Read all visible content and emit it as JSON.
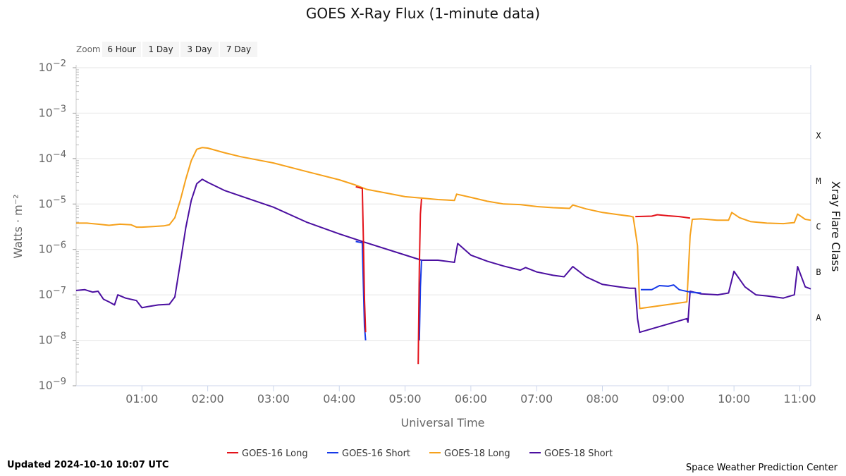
{
  "title": "GOES X-Ray Flux (1-minute data)",
  "zoom": {
    "label": "Zoom",
    "buttons": [
      "6 Hour",
      "1 Day",
      "3 Day",
      "7 Day"
    ]
  },
  "updated": "Updated 2024-10-10 10:07 UTC",
  "credit": "Space Weather Prediction Center",
  "colors": {
    "goes16_long": "#e3121a",
    "goes16_short": "#1639e8",
    "goes18_long": "#f6a11b",
    "goes18_short": "#4b0fa0"
  },
  "chart_data": {
    "type": "line",
    "title": "GOES X-Ray Flux (1-minute data)",
    "xlabel": "Universal Time",
    "ylabel": "Watts · m⁻²",
    "y2label": "Xray Flare Class",
    "yscale": "log",
    "xlim": [
      "00:00",
      "11:10"
    ],
    "ylim": [
      1e-09,
      0.01
    ],
    "x_ticks": [
      "01:00",
      "02:00",
      "03:00",
      "04:00",
      "05:00",
      "06:00",
      "07:00",
      "08:00",
      "09:00",
      "10:00",
      "11:00"
    ],
    "y_ticks": [
      {
        "base": "10",
        "exp": "−2"
      },
      {
        "base": "10",
        "exp": "−3"
      },
      {
        "base": "10",
        "exp": "−4"
      },
      {
        "base": "10",
        "exp": "−5"
      },
      {
        "base": "10",
        "exp": "−6"
      },
      {
        "base": "10",
        "exp": "−7"
      },
      {
        "base": "10",
        "exp": "−8"
      },
      {
        "base": "10",
        "exp": "−9"
      }
    ],
    "flare_classes": [
      {
        "label": "X",
        "value": 0.0001
      },
      {
        "label": "M",
        "value": 1e-05
      },
      {
        "label": "C",
        "value": 1e-06
      },
      {
        "label": "B",
        "value": 1e-07
      },
      {
        "label": "A",
        "value": 1e-08
      }
    ],
    "grid": true,
    "legend_position": "bottom-center",
    "series": [
      {
        "name": "GOES-16 Long",
        "color": "#e3121a",
        "points": [
          [
            "00:00",
            null
          ],
          [
            "04:15",
            2.4e-05
          ],
          [
            "04:21",
            2.2e-05
          ],
          [
            "04:22",
            1.5e-06
          ],
          [
            "04:23",
            8e-08
          ],
          [
            "04:24",
            1.5e-08
          ],
          [
            "04:25",
            null
          ],
          [
            "05:12",
            3e-09
          ],
          [
            "05:13",
            4e-07
          ],
          [
            "05:14",
            6e-06
          ],
          [
            "05:15",
            1.3e-05
          ],
          [
            "05:16",
            null
          ],
          [
            "08:30",
            5.3e-06
          ],
          [
            "08:45",
            5.4e-06
          ],
          [
            "08:50",
            5.8e-06
          ],
          [
            "09:00",
            5.5e-06
          ],
          [
            "09:10",
            5.3e-06
          ],
          [
            "09:20",
            4.9e-06
          ]
        ]
      },
      {
        "name": "GOES-16 Short",
        "color": "#1639e8",
        "points": [
          [
            "04:15",
            1.5e-06
          ],
          [
            "04:21",
            1.4e-06
          ],
          [
            "04:22",
            1.5e-07
          ],
          [
            "04:23",
            2e-08
          ],
          [
            "04:24",
            1e-08
          ],
          [
            "04:25",
            null
          ],
          [
            "05:13",
            1e-08
          ],
          [
            "05:14",
            1.5e-07
          ],
          [
            "05:15",
            5.8e-07
          ],
          [
            "05:16",
            null
          ],
          [
            "08:35",
            1.3e-07
          ],
          [
            "08:45",
            1.3e-07
          ],
          [
            "08:52",
            1.6e-07
          ],
          [
            "09:00",
            1.55e-07
          ],
          [
            "09:05",
            1.65e-07
          ],
          [
            "09:10",
            1.3e-07
          ],
          [
            "09:20",
            1.15e-07
          ],
          [
            "09:30",
            1.1e-07
          ]
        ]
      },
      {
        "name": "GOES-18 Long",
        "color": "#f6a11b",
        "points": [
          [
            "00:00",
            3.8e-06
          ],
          [
            "00:10",
            3.8e-06
          ],
          [
            "00:20",
            3.6e-06
          ],
          [
            "00:30",
            3.4e-06
          ],
          [
            "00:40",
            3.6e-06
          ],
          [
            "00:50",
            3.5e-06
          ],
          [
            "00:55",
            3.1e-06
          ],
          [
            "01:00",
            3.1e-06
          ],
          [
            "01:10",
            3.2e-06
          ],
          [
            "01:20",
            3.3e-06
          ],
          [
            "01:25",
            3.5e-06
          ],
          [
            "01:30",
            5e-06
          ],
          [
            "01:35",
            1.2e-05
          ],
          [
            "01:40",
            3.5e-05
          ],
          [
            "01:45",
            9e-05
          ],
          [
            "01:50",
            0.00016
          ],
          [
            "01:55",
            0.000175
          ],
          [
            "02:00",
            0.00017
          ],
          [
            "02:15",
            0.000135
          ],
          [
            "02:30",
            0.00011
          ],
          [
            "03:00",
            8e-05
          ],
          [
            "03:30",
            5.2e-05
          ],
          [
            "04:00",
            3.4e-05
          ],
          [
            "04:15",
            2.6e-05
          ],
          [
            "04:25",
            2.1e-05
          ],
          [
            "04:45",
            1.7e-05
          ],
          [
            "05:00",
            1.45e-05
          ],
          [
            "05:15",
            1.35e-05
          ],
          [
            "05:30",
            1.25e-05
          ],
          [
            "05:45",
            1.2e-05
          ],
          [
            "05:47",
            1.65e-05
          ],
          [
            "06:00",
            1.4e-05
          ],
          [
            "06:15",
            1.15e-05
          ],
          [
            "06:30",
            1e-05
          ],
          [
            "06:45",
            9.7e-06
          ],
          [
            "07:00",
            8.8e-06
          ],
          [
            "07:15",
            8.3e-06
          ],
          [
            "07:30",
            8e-06
          ],
          [
            "07:33",
            9.5e-06
          ],
          [
            "07:45",
            7.8e-06
          ],
          [
            "08:00",
            6.5e-06
          ],
          [
            "08:15",
            5.8e-06
          ],
          [
            "08:25",
            5.4e-06
          ],
          [
            "08:28",
            5.2e-06
          ],
          [
            "08:32",
            1.2e-06
          ],
          [
            "08:34",
            5e-08
          ],
          [
            "09:17",
            7e-08
          ],
          [
            "09:20",
            2e-06
          ],
          [
            "09:22",
            4.6e-06
          ],
          [
            "09:30",
            4.7e-06
          ],
          [
            "09:45",
            4.4e-06
          ],
          [
            "09:55",
            4.4e-06
          ],
          [
            "09:58",
            6.5e-06
          ],
          [
            "10:05",
            5e-06
          ],
          [
            "10:15",
            4.1e-06
          ],
          [
            "10:30",
            3.8e-06
          ],
          [
            "10:45",
            3.7e-06
          ],
          [
            "10:55",
            3.9e-06
          ],
          [
            "10:58",
            6e-06
          ],
          [
            "11:05",
            4.6e-06
          ],
          [
            "11:10",
            4.4e-06
          ]
        ]
      },
      {
        "name": "GOES-18 Short",
        "color": "#4b0fa0",
        "points": [
          [
            "00:00",
            1.25e-07
          ],
          [
            "00:08",
            1.3e-07
          ],
          [
            "00:15",
            1.15e-07
          ],
          [
            "00:20",
            1.2e-07
          ],
          [
            "00:25",
            8e-08
          ],
          [
            "00:30",
            7e-08
          ],
          [
            "00:35",
            6e-08
          ],
          [
            "00:38",
            1e-07
          ],
          [
            "00:45",
            8.5e-08
          ],
          [
            "00:55",
            7.5e-08
          ],
          [
            "01:00",
            5.2e-08
          ],
          [
            "01:05",
            5.5e-08
          ],
          [
            "01:15",
            6e-08
          ],
          [
            "01:25",
            6.2e-08
          ],
          [
            "01:30",
            9e-08
          ],
          [
            "01:35",
            5e-07
          ],
          [
            "01:40",
            3e-06
          ],
          [
            "01:45",
            1.2e-05
          ],
          [
            "01:50",
            2.8e-05
          ],
          [
            "01:55",
            3.5e-05
          ],
          [
            "02:00",
            3e-05
          ],
          [
            "02:15",
            2e-05
          ],
          [
            "02:30",
            1.5e-05
          ],
          [
            "03:00",
            8.5e-06
          ],
          [
            "03:30",
            4e-06
          ],
          [
            "04:00",
            2.2e-06
          ],
          [
            "04:21",
            1.5e-06
          ],
          [
            "05:15",
            5.8e-07
          ],
          [
            "05:30",
            5.8e-07
          ],
          [
            "05:45",
            5.2e-07
          ],
          [
            "05:48",
            1.35e-06
          ],
          [
            "06:00",
            7.5e-07
          ],
          [
            "06:15",
            5.5e-07
          ],
          [
            "06:30",
            4.3e-07
          ],
          [
            "06:45",
            3.5e-07
          ],
          [
            "06:50",
            4e-07
          ],
          [
            "07:00",
            3.2e-07
          ],
          [
            "07:15",
            2.7e-07
          ],
          [
            "07:25",
            2.5e-07
          ],
          [
            "07:33",
            4.2e-07
          ],
          [
            "07:45",
            2.5e-07
          ],
          [
            "08:00",
            1.7e-07
          ],
          [
            "08:15",
            1.5e-07
          ],
          [
            "08:25",
            1.4e-07
          ],
          [
            "08:30",
            1.4e-07
          ],
          [
            "08:32",
            3e-08
          ],
          [
            "08:34",
            1.5e-08
          ],
          [
            "09:17",
            3e-08
          ],
          [
            "09:18",
            2.5e-08
          ],
          [
            "09:20",
            1.2e-07
          ],
          [
            "09:30",
            1.05e-07
          ],
          [
            "09:45",
            1e-07
          ],
          [
            "09:55",
            1.1e-07
          ],
          [
            "10:00",
            3.3e-07
          ],
          [
            "10:10",
            1.5e-07
          ],
          [
            "10:20",
            1e-07
          ],
          [
            "10:30",
            9.5e-08
          ],
          [
            "10:45",
            8.5e-08
          ],
          [
            "10:55",
            1e-07
          ],
          [
            "10:58",
            4.2e-07
          ],
          [
            "11:05",
            1.5e-07
          ],
          [
            "11:10",
            1.35e-07
          ]
        ]
      }
    ]
  }
}
